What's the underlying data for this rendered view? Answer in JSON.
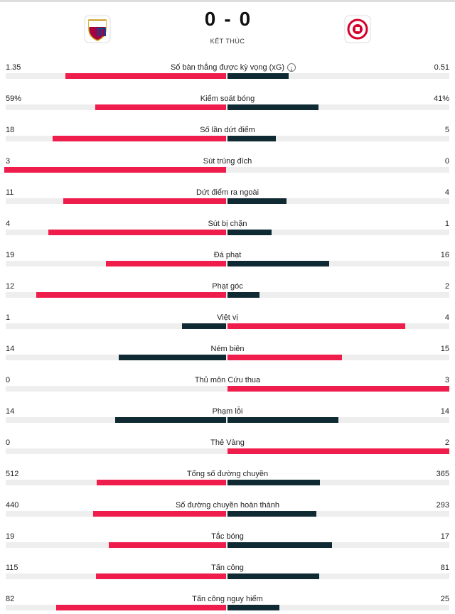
{
  "header": {
    "score": {
      "home": 0,
      "separator": "-",
      "away": 0
    },
    "status": "KẾT THÚC"
  },
  "stats": [
    {
      "label": "Số bàn thắng được kỳ vọng (xG)",
      "home": 1.35,
      "away": 0.51
    },
    {
      "label": "Kiểm soát bóng",
      "home": 59,
      "away": 41,
      "home_label": "59%",
      "away_label": "41%"
    },
    {
      "label": "Số lần dứt điểm",
      "home": 18,
      "away": 5
    },
    {
      "label": "Sút trúng đích",
      "home": 3,
      "away": 0
    },
    {
      "label": "Dứt điểm ra ngoài",
      "home": 11,
      "away": 4
    },
    {
      "label": "Sút bị chặn",
      "home": 4,
      "away": 1
    },
    {
      "label": "Đá phạt",
      "home": 19,
      "away": 16
    },
    {
      "label": "Phạt góc",
      "home": 12,
      "away": 2
    },
    {
      "label": "Việt vị",
      "home": 1,
      "away": 4
    },
    {
      "label": "Ném biên",
      "home": 14,
      "away": 15
    },
    {
      "label": "Thủ môn Cứu thua",
      "home": 0,
      "away": 3
    },
    {
      "label": "Phạm lỗi",
      "home": 14,
      "away": 14
    },
    {
      "label": "Thẻ Vàng",
      "home": 0,
      "away": 2
    },
    {
      "label": "Tổng số đường chuyền",
      "home": 512,
      "away": 365
    },
    {
      "label": "Số đường chuyền hoàn thành",
      "home": 440,
      "away": 293
    },
    {
      "label": "Tắc bóng",
      "home": 19,
      "away": 17
    },
    {
      "label": "Tấn công",
      "home": 115,
      "away": 81
    },
    {
      "label": "Tấn công nguy hiểm",
      "home": 82,
      "away": 25
    }
  ]
}
